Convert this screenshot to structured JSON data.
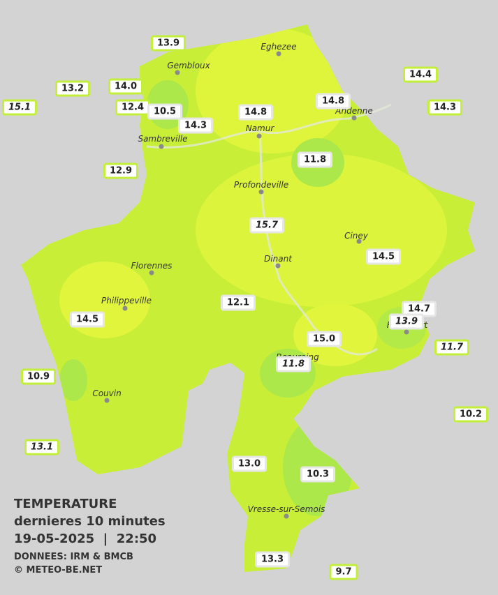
{
  "legend": {
    "title": "TEMPERATURE",
    "subtitle": "dernieres 10 minutes",
    "datetime": "19-05-2025  |  22:50",
    "source": "DONNEES: IRM & BMCB",
    "credit": "© METEO-BE.NET"
  },
  "towns": [
    "Eghezee",
    "Gembloux",
    "Andenne",
    "Namur",
    "Sambreville",
    "Profondeville",
    "Ciney",
    "Dinant",
    "Florennes",
    "Philippeville",
    "Rochefort",
    "Beauraing",
    "Couvin",
    "Vresse-sur-Semois"
  ],
  "stations": [
    "13.9",
    "14.0",
    "13.2",
    "15.1",
    "12.4",
    "10.5",
    "14.3",
    "14.8",
    "14.8",
    "14.4",
    "14.3",
    "12.9",
    "11.8",
    "15.7",
    "14.5",
    "12.1",
    "14.5",
    "14.7",
    "13.9",
    "15.0",
    "11.7",
    "11.8",
    "10.9",
    "10.2",
    "13.1",
    "13.0",
    "10.3",
    "13.3",
    "9.7"
  ]
}
